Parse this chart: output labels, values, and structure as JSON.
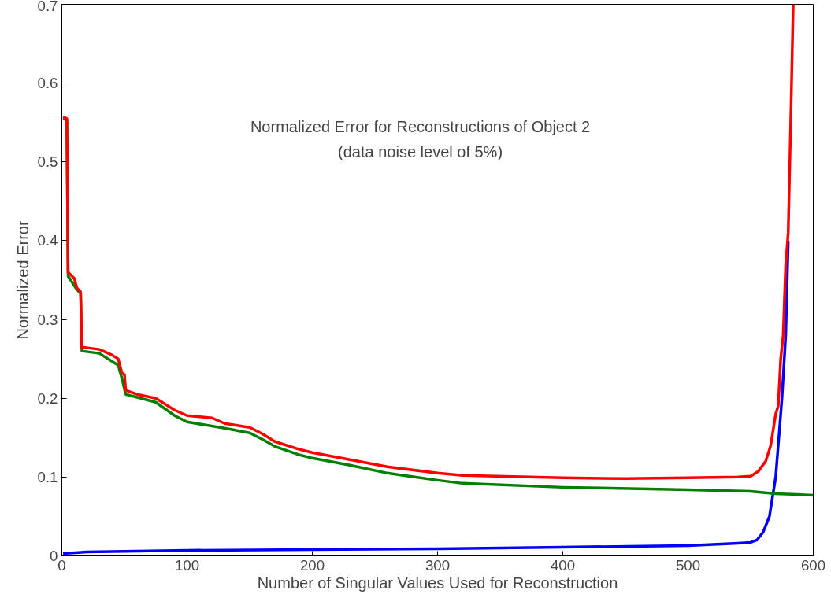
{
  "chart_data": {
    "type": "line",
    "title": "Normalized Error for Reconstructions of Object 2",
    "subtitle": "(data noise level of 5%)",
    "xlabel": "Number of Singular Values Used for Reconstruction",
    "ylabel": "Normalized Error",
    "series": [
      {
        "color": "#0000ff",
        "x": [
          1,
          20,
          100,
          200,
          300,
          400,
          500,
          540,
          550,
          555,
          560,
          565,
          568,
          570,
          573,
          575,
          578,
          580
        ],
        "values": [
          0.003,
          0.005,
          0.007,
          0.008,
          0.009,
          0.011,
          0.013,
          0.016,
          0.017,
          0.02,
          0.03,
          0.05,
          0.08,
          0.1,
          0.16,
          0.2,
          0.28,
          0.4
        ]
      },
      {
        "color": "#008000",
        "x": [
          1,
          4,
          5,
          12,
          15,
          16,
          30,
          45,
          48,
          51,
          75,
          90,
          100,
          130,
          150,
          160,
          170,
          190,
          200,
          230,
          260,
          300,
          320,
          400,
          500,
          550,
          570,
          600
        ],
        "values": [
          0.555,
          0.553,
          0.355,
          0.338,
          0.333,
          0.26,
          0.257,
          0.242,
          0.225,
          0.205,
          0.195,
          0.178,
          0.17,
          0.162,
          0.156,
          0.148,
          0.139,
          0.128,
          0.124,
          0.115,
          0.105,
          0.096,
          0.092,
          0.087,
          0.084,
          0.082,
          0.079,
          0.077
        ]
      },
      {
        "color": "#ff0000",
        "x": [
          1,
          4,
          5,
          10,
          12,
          15,
          16,
          30,
          40,
          45,
          48,
          50,
          51,
          60,
          75,
          90,
          100,
          120,
          130,
          150,
          160,
          170,
          190,
          200,
          230,
          260,
          300,
          320,
          400,
          450,
          500,
          540,
          550,
          556,
          562,
          566,
          570,
          572,
          574,
          576,
          578,
          580,
          582,
          584
        ],
        "values": [
          0.557,
          0.555,
          0.36,
          0.352,
          0.34,
          0.335,
          0.265,
          0.262,
          0.255,
          0.25,
          0.232,
          0.23,
          0.21,
          0.205,
          0.2,
          0.185,
          0.178,
          0.175,
          0.168,
          0.163,
          0.155,
          0.145,
          0.135,
          0.131,
          0.122,
          0.113,
          0.105,
          0.102,
          0.099,
          0.098,
          0.099,
          0.1,
          0.101,
          0.107,
          0.12,
          0.14,
          0.18,
          0.19,
          0.25,
          0.28,
          0.37,
          0.41,
          0.55,
          0.7
        ]
      }
    ],
    "xlim": [
      0,
      600
    ],
    "xticks": [
      0,
      100,
      200,
      300,
      400,
      500,
      600
    ],
    "ylim": [
      0,
      0.7
    ],
    "yticks": [
      0,
      0.1,
      0.2,
      0.3,
      0.4,
      0.5,
      0.6,
      0.7
    ],
    "grid": false,
    "line_style": "solid"
  }
}
